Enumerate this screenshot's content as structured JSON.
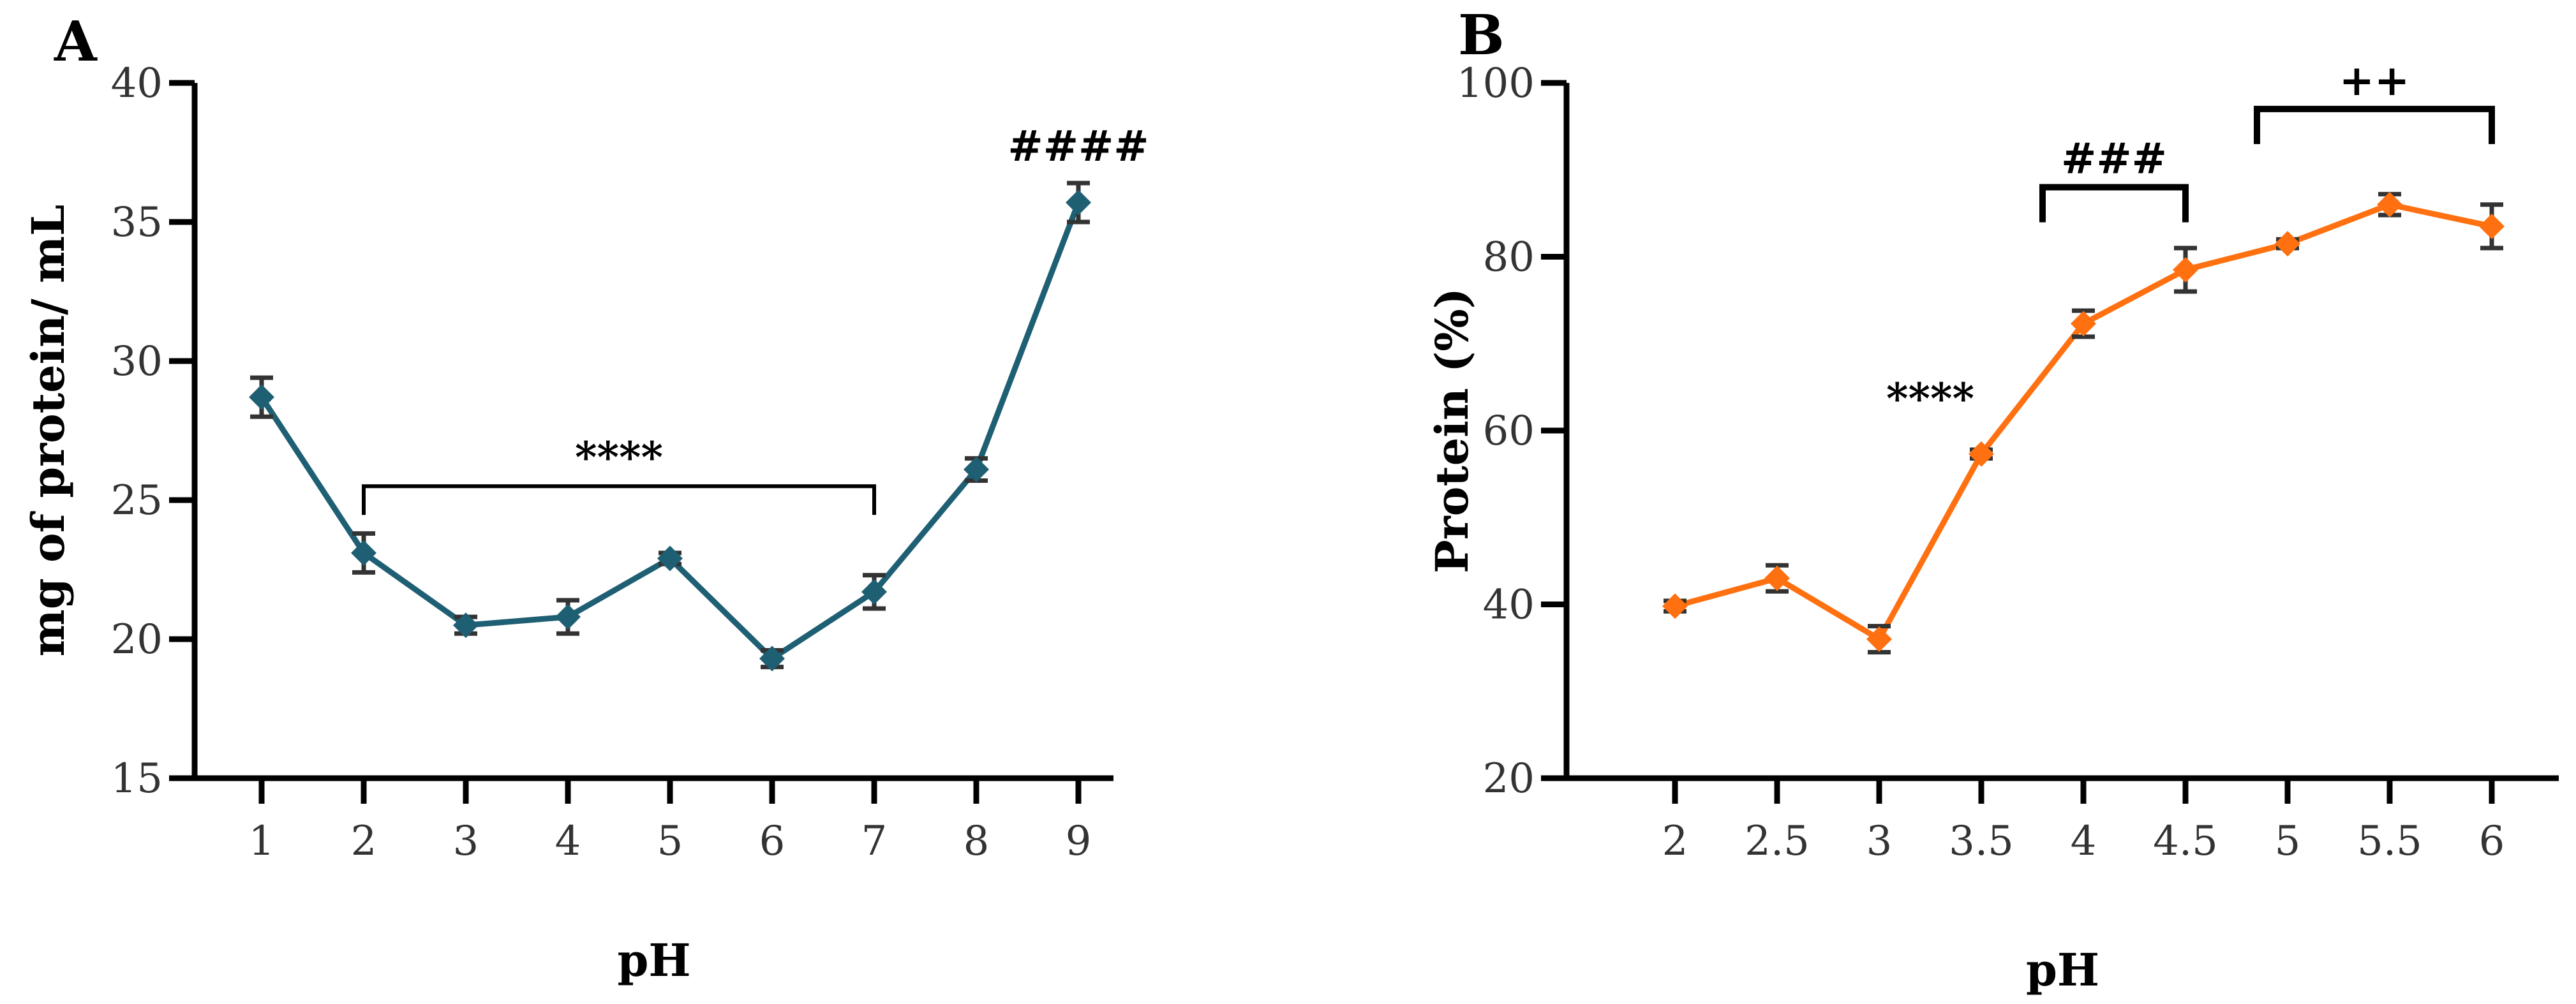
{
  "chart_data": [
    {
      "type": "line",
      "panel_label": "A",
      "title": "",
      "xlabel": "pH",
      "ylabel": "mg of protein/ mL",
      "x": [
        1,
        2,
        3,
        4,
        5,
        6,
        7,
        8,
        9
      ],
      "x_tick_labels": [
        "1",
        "2",
        "3",
        "4",
        "5",
        "6",
        "7",
        "8",
        "9"
      ],
      "ylim": [
        15,
        40
      ],
      "y_ticks": [
        15,
        20,
        25,
        30,
        35,
        40
      ],
      "y_tick_labels": [
        "15",
        "20",
        "25",
        "30",
        "35",
        "40"
      ],
      "color": "#1f5f73",
      "marker": "diamond",
      "series": [
        {
          "name": "protein",
          "values": [
            28.7,
            23.1,
            20.5,
            20.8,
            22.9,
            19.3,
            21.7,
            26.1,
            35.7
          ],
          "errors": [
            0.7,
            0.7,
            0.3,
            0.6,
            0.2,
            0.3,
            0.6,
            0.4,
            0.7
          ]
        }
      ],
      "annotations": [
        {
          "text": "****",
          "type": "bracket",
          "x_start": 2,
          "x_end": 7,
          "y": 25.5,
          "bold": false
        },
        {
          "text": "####",
          "type": "label",
          "x": 9,
          "y": 37.2
        }
      ]
    },
    {
      "type": "line",
      "panel_label": "B",
      "title": "",
      "xlabel": "pH",
      "ylabel": "Protein (%)",
      "x": [
        2,
        2.5,
        3,
        3.5,
        4,
        4.5,
        5,
        5.5,
        6
      ],
      "x_tick_labels": [
        "2",
        "2.5",
        "3",
        "3.5",
        "4",
        "4.5",
        "5",
        "5.5",
        "6"
      ],
      "ylim": [
        20,
        100
      ],
      "y_ticks": [
        20,
        40,
        60,
        80,
        100
      ],
      "y_tick_labels": [
        "20",
        "40",
        "60",
        "80",
        "100"
      ],
      "color": "#ff7010",
      "marker": "diamond",
      "series": [
        {
          "name": "protein",
          "values": [
            39.8,
            43.0,
            36.0,
            57.3,
            72.3,
            78.5,
            81.5,
            86.0,
            83.5
          ],
          "errors": [
            0.6,
            1.5,
            1.5,
            0.5,
            1.5,
            2.5,
            0.5,
            1.2,
            2.5
          ]
        }
      ],
      "annotations": [
        {
          "text": "****",
          "type": "label",
          "x": 3.25,
          "y": 62
        },
        {
          "text": "###",
          "type": "bracket",
          "x_start": 3.8,
          "x_end": 4.5,
          "y": 88,
          "bold": true
        },
        {
          "text": "++",
          "type": "bracket",
          "x_start": 4.85,
          "x_end": 6,
          "y": 97,
          "bold": true
        }
      ]
    }
  ]
}
